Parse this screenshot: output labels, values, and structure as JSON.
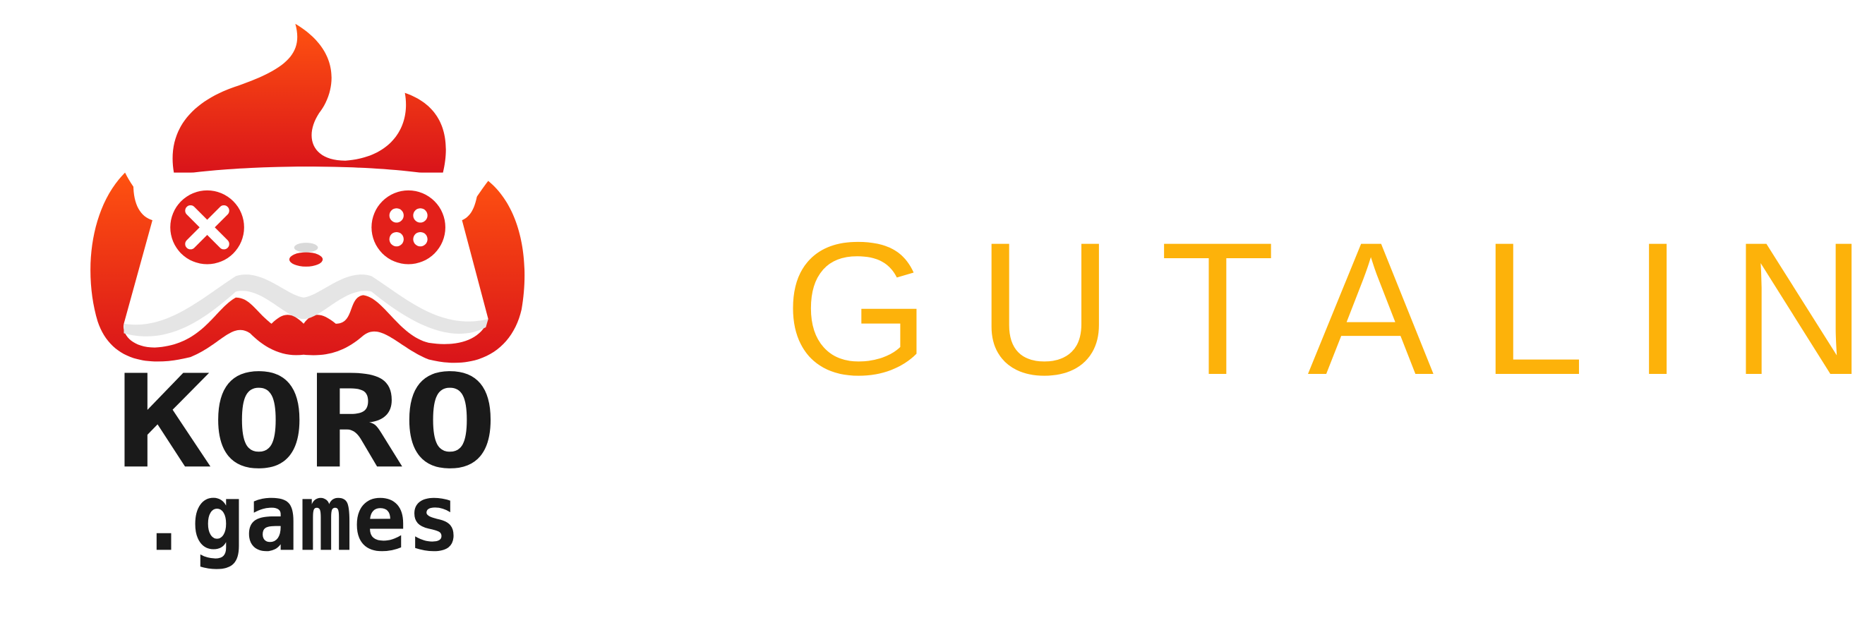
{
  "logo": {
    "line1": "KORO",
    "line2": ".games"
  },
  "wordmark": "GUTALIN"
}
